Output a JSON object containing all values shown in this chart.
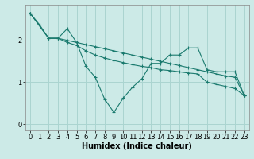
{
  "bg_color": "#cceae7",
  "grid_color": "#aad4d0",
  "line_color": "#1a7a6e",
  "xlabel": "Humidex (Indice chaleur)",
  "xlabel_fontsize": 7,
  "tick_fontsize": 6,
  "xlim": [
    -0.5,
    23.5
  ],
  "ylim": [
    -0.15,
    2.85
  ],
  "yticks": [
    0,
    1,
    2
  ],
  "xticks": [
    0,
    1,
    2,
    3,
    4,
    5,
    6,
    7,
    8,
    9,
    10,
    11,
    12,
    13,
    14,
    15,
    16,
    17,
    18,
    19,
    20,
    21,
    22,
    23
  ],
  "series1_x": [
    0,
    1,
    2,
    3,
    4,
    5,
    6,
    7,
    8,
    9,
    10,
    11,
    12,
    13,
    14,
    15,
    16,
    17,
    18,
    19,
    20,
    21,
    22,
    23
  ],
  "series1_y": [
    2.65,
    2.38,
    2.05,
    2.05,
    2.0,
    1.95,
    1.9,
    1.85,
    1.8,
    1.75,
    1.7,
    1.65,
    1.6,
    1.55,
    1.5,
    1.45,
    1.4,
    1.35,
    1.3,
    1.25,
    1.2,
    1.15,
    1.12,
    0.68
  ],
  "series2_x": [
    0,
    2,
    3,
    4,
    5,
    6,
    7,
    8,
    9,
    10,
    11,
    12,
    13,
    14,
    15,
    16,
    17,
    18,
    19,
    20,
    21,
    22,
    23
  ],
  "series2_y": [
    2.65,
    2.05,
    2.05,
    2.28,
    1.95,
    1.38,
    1.12,
    0.6,
    0.28,
    0.62,
    0.88,
    1.08,
    1.45,
    1.45,
    1.65,
    1.65,
    1.82,
    1.82,
    1.3,
    1.25,
    1.25,
    1.25,
    0.68
  ],
  "series3_x": [
    0,
    2,
    3,
    4,
    5,
    6,
    7,
    8,
    9,
    10,
    11,
    12,
    13,
    14,
    15,
    16,
    17,
    18,
    19,
    20,
    21,
    22,
    23
  ],
  "series3_y": [
    2.65,
    2.05,
    2.05,
    1.95,
    1.88,
    1.75,
    1.65,
    1.58,
    1.52,
    1.47,
    1.42,
    1.38,
    1.35,
    1.3,
    1.28,
    1.25,
    1.22,
    1.2,
    1.0,
    0.95,
    0.9,
    0.85,
    0.68
  ]
}
